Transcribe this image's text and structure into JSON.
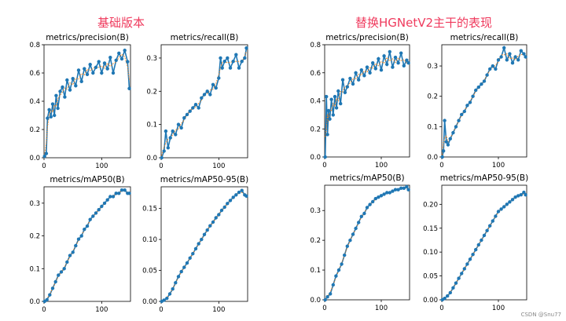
{
  "headings": {
    "left": "基础版本",
    "right": "替换HGNetV2主干的表现"
  },
  "watermark": "CSDN @Snu77",
  "colors": {
    "heading": "#ef3a5d",
    "series": "#1f77b4",
    "smooth": "#ff7f0e"
  },
  "chart_data": [
    {
      "type": "line",
      "group": "left",
      "title": "metrics/precision(B)",
      "xlim": [
        0,
        150
      ],
      "ylim": [
        0,
        0.8
      ],
      "xticks": [
        0,
        100
      ],
      "yticks": [
        0.0,
        0.2,
        0.4,
        0.6,
        0.8
      ],
      "ytick_decimals": 1,
      "series": [
        {
          "x": [
            1,
            4,
            6,
            9,
            12,
            15,
            18,
            21,
            24,
            28,
            32,
            36,
            40,
            45,
            50,
            55,
            60,
            65,
            70,
            75,
            80,
            85,
            90,
            95,
            100,
            105,
            110,
            115,
            120,
            125,
            130,
            135,
            140,
            145,
            148
          ],
          "y": [
            0.01,
            0.03,
            0.28,
            0.34,
            0.29,
            0.38,
            0.3,
            0.44,
            0.35,
            0.47,
            0.5,
            0.43,
            0.55,
            0.48,
            0.56,
            0.51,
            0.62,
            0.54,
            0.63,
            0.59,
            0.66,
            0.6,
            0.64,
            0.68,
            0.6,
            0.67,
            0.63,
            0.71,
            0.6,
            0.69,
            0.74,
            0.7,
            0.76,
            0.68,
            0.49
          ]
        }
      ]
    },
    {
      "type": "line",
      "group": "left",
      "title": "metrics/recall(B)",
      "xlim": [
        0,
        150
      ],
      "ylim": [
        0,
        0.34
      ],
      "xticks": [
        0,
        100
      ],
      "yticks": [
        0.0,
        0.1,
        0.2,
        0.3
      ],
      "ytick_decimals": 1,
      "series": [
        {
          "x": [
            1,
            5,
            8,
            12,
            16,
            20,
            25,
            30,
            35,
            40,
            45,
            50,
            55,
            60,
            65,
            70,
            75,
            80,
            85,
            90,
            95,
            100,
            103,
            106,
            110,
            115,
            120,
            125,
            130,
            135,
            140,
            145,
            148
          ],
          "y": [
            0.0,
            0.02,
            0.08,
            0.03,
            0.06,
            0.08,
            0.07,
            0.1,
            0.09,
            0.12,
            0.13,
            0.14,
            0.15,
            0.16,
            0.15,
            0.18,
            0.19,
            0.2,
            0.19,
            0.22,
            0.21,
            0.24,
            0.3,
            0.27,
            0.29,
            0.3,
            0.27,
            0.29,
            0.31,
            0.27,
            0.29,
            0.3,
            0.33
          ]
        }
      ]
    },
    {
      "type": "line",
      "group": "left",
      "title": "metrics/mAP50(B)",
      "xlim": [
        0,
        150
      ],
      "ylim": [
        0,
        0.35
      ],
      "xticks": [
        0,
        100
      ],
      "yticks": [
        0.0,
        0.1,
        0.2,
        0.3
      ],
      "ytick_decimals": 1,
      "series": [
        {
          "x": [
            1,
            5,
            10,
            15,
            20,
            25,
            30,
            35,
            40,
            45,
            50,
            55,
            60,
            65,
            70,
            75,
            80,
            85,
            90,
            95,
            100,
            105,
            110,
            115,
            120,
            125,
            130,
            135,
            140,
            145,
            148
          ],
          "y": [
            0.0,
            0.005,
            0.02,
            0.04,
            0.06,
            0.08,
            0.09,
            0.1,
            0.12,
            0.14,
            0.15,
            0.17,
            0.19,
            0.2,
            0.22,
            0.23,
            0.25,
            0.26,
            0.27,
            0.28,
            0.29,
            0.3,
            0.31,
            0.32,
            0.32,
            0.33,
            0.33,
            0.34,
            0.34,
            0.33,
            0.33
          ]
        }
      ]
    },
    {
      "type": "line",
      "group": "left",
      "title": "metrics/mAP50-95(B)",
      "xlim": [
        0,
        150
      ],
      "ylim": [
        0,
        0.185
      ],
      "xticks": [
        0,
        100
      ],
      "yticks": [
        0.0,
        0.05,
        0.1,
        0.15
      ],
      "ytick_decimals": 2,
      "series": [
        {
          "x": [
            1,
            5,
            10,
            15,
            20,
            25,
            30,
            35,
            40,
            45,
            50,
            55,
            60,
            65,
            70,
            75,
            80,
            85,
            90,
            95,
            100,
            105,
            110,
            115,
            120,
            125,
            130,
            135,
            140,
            145,
            148
          ],
          "y": [
            0.0,
            0.002,
            0.005,
            0.012,
            0.02,
            0.03,
            0.04,
            0.048,
            0.055,
            0.062,
            0.07,
            0.077,
            0.085,
            0.093,
            0.1,
            0.108,
            0.115,
            0.122,
            0.128,
            0.135,
            0.14,
            0.147,
            0.152,
            0.158,
            0.163,
            0.168,
            0.172,
            0.176,
            0.179,
            0.172,
            0.17
          ]
        }
      ]
    },
    {
      "type": "line",
      "group": "right",
      "title": "metrics/precision(B)",
      "xlim": [
        0,
        150
      ],
      "ylim": [
        0,
        0.8
      ],
      "xticks": [
        0,
        100
      ],
      "yticks": [
        0.0,
        0.2,
        0.4,
        0.6,
        0.8
      ],
      "ytick_decimals": 1,
      "series": [
        {
          "x": [
            1,
            3,
            5,
            7,
            9,
            12,
            15,
            18,
            21,
            24,
            28,
            32,
            36,
            40,
            45,
            50,
            55,
            60,
            65,
            70,
            75,
            80,
            85,
            90,
            95,
            100,
            105,
            110,
            115,
            120,
            125,
            130,
            135,
            140,
            145,
            148
          ],
          "y": [
            0.0,
            0.43,
            0.16,
            0.33,
            0.27,
            0.41,
            0.3,
            0.43,
            0.35,
            0.47,
            0.38,
            0.55,
            0.46,
            0.5,
            0.56,
            0.52,
            0.6,
            0.55,
            0.62,
            0.58,
            0.64,
            0.6,
            0.67,
            0.63,
            0.7,
            0.62,
            0.72,
            0.66,
            0.75,
            0.64,
            0.71,
            0.67,
            0.74,
            0.65,
            0.69,
            0.67
          ]
        }
      ]
    },
    {
      "type": "line",
      "group": "right",
      "title": "metrics/recall(B)",
      "xlim": [
        0,
        150
      ],
      "ylim": [
        0,
        0.37
      ],
      "xticks": [
        0,
        100
      ],
      "yticks": [
        0.0,
        0.1,
        0.2,
        0.3
      ],
      "ytick_decimals": 1,
      "series": [
        {
          "x": [
            1,
            3,
            5,
            8,
            11,
            15,
            20,
            25,
            30,
            35,
            40,
            45,
            50,
            55,
            60,
            65,
            70,
            75,
            80,
            85,
            90,
            95,
            100,
            105,
            110,
            115,
            120,
            125,
            130,
            135,
            140,
            145,
            148
          ],
          "y": [
            0.0,
            0.02,
            0.12,
            0.05,
            0.04,
            0.06,
            0.08,
            0.1,
            0.12,
            0.14,
            0.15,
            0.17,
            0.18,
            0.2,
            0.22,
            0.23,
            0.24,
            0.25,
            0.27,
            0.29,
            0.3,
            0.29,
            0.32,
            0.33,
            0.36,
            0.32,
            0.34,
            0.31,
            0.33,
            0.32,
            0.35,
            0.34,
            0.33
          ]
        }
      ]
    },
    {
      "type": "line",
      "group": "right",
      "title": "metrics/mAP50(B)",
      "xlim": [
        0,
        150
      ],
      "ylim": [
        0,
        0.385
      ],
      "xticks": [
        0,
        100
      ],
      "yticks": [
        0.0,
        0.1,
        0.2,
        0.3
      ],
      "ytick_decimals": 1,
      "series": [
        {
          "x": [
            1,
            5,
            10,
            15,
            20,
            25,
            30,
            35,
            40,
            45,
            50,
            55,
            60,
            65,
            70,
            75,
            80,
            85,
            90,
            95,
            100,
            105,
            110,
            115,
            120,
            125,
            130,
            135,
            140,
            145,
            148
          ],
          "y": [
            0.0,
            0.01,
            0.02,
            0.05,
            0.08,
            0.1,
            0.12,
            0.15,
            0.18,
            0.2,
            0.22,
            0.24,
            0.26,
            0.28,
            0.29,
            0.31,
            0.32,
            0.33,
            0.34,
            0.345,
            0.35,
            0.355,
            0.36,
            0.36,
            0.365,
            0.37,
            0.37,
            0.375,
            0.375,
            0.38,
            0.37
          ]
        }
      ]
    },
    {
      "type": "line",
      "group": "right",
      "title": "metrics/mAP50-95(B)",
      "xlim": [
        0,
        150
      ],
      "ylim": [
        0,
        0.24
      ],
      "xticks": [
        0,
        100
      ],
      "yticks": [
        0.0,
        0.05,
        0.1,
        0.15,
        0.2
      ],
      "ytick_decimals": 2,
      "series": [
        {
          "x": [
            1,
            5,
            10,
            15,
            20,
            25,
            30,
            35,
            40,
            45,
            50,
            55,
            60,
            65,
            70,
            75,
            80,
            85,
            90,
            95,
            100,
            105,
            110,
            115,
            120,
            125,
            130,
            135,
            140,
            145,
            148
          ],
          "y": [
            0.0,
            0.003,
            0.008,
            0.015,
            0.025,
            0.035,
            0.045,
            0.055,
            0.065,
            0.075,
            0.085,
            0.095,
            0.105,
            0.115,
            0.125,
            0.135,
            0.145,
            0.155,
            0.165,
            0.175,
            0.185,
            0.19,
            0.195,
            0.2,
            0.205,
            0.21,
            0.215,
            0.218,
            0.22,
            0.225,
            0.22
          ]
        }
      ]
    }
  ]
}
